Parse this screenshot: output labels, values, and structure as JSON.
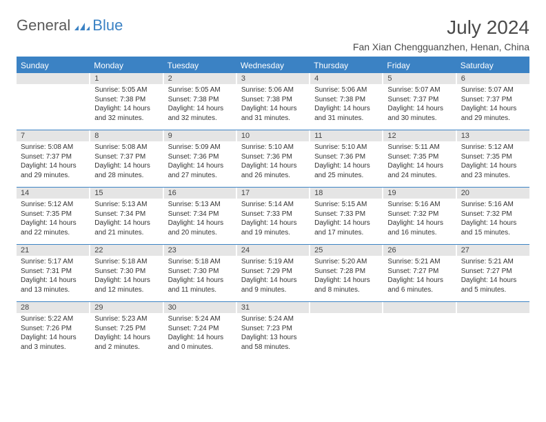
{
  "logo": {
    "word1": "General",
    "word2": "Blue",
    "color_gray": "#5a5a5a",
    "color_blue": "#3b82c4"
  },
  "title": "July 2024",
  "location": "Fan Xian Chengguanzhen, Henan, China",
  "day_names": [
    "Sunday",
    "Monday",
    "Tuesday",
    "Wednesday",
    "Thursday",
    "Friday",
    "Saturday"
  ],
  "colors": {
    "header_bg": "#3b82c4",
    "header_text": "#ffffff",
    "num_bg": "#e5e5e5",
    "rule": "#3b82c4",
    "text": "#333333"
  },
  "weeks": [
    {
      "nums": [
        "",
        "1",
        "2",
        "3",
        "4",
        "5",
        "6"
      ],
      "cells": [
        null,
        {
          "sr": "Sunrise: 5:05 AM",
          "ss": "Sunset: 7:38 PM",
          "d1": "Daylight: 14 hours",
          "d2": "and 32 minutes."
        },
        {
          "sr": "Sunrise: 5:05 AM",
          "ss": "Sunset: 7:38 PM",
          "d1": "Daylight: 14 hours",
          "d2": "and 32 minutes."
        },
        {
          "sr": "Sunrise: 5:06 AM",
          "ss": "Sunset: 7:38 PM",
          "d1": "Daylight: 14 hours",
          "d2": "and 31 minutes."
        },
        {
          "sr": "Sunrise: 5:06 AM",
          "ss": "Sunset: 7:38 PM",
          "d1": "Daylight: 14 hours",
          "d2": "and 31 minutes."
        },
        {
          "sr": "Sunrise: 5:07 AM",
          "ss": "Sunset: 7:37 PM",
          "d1": "Daylight: 14 hours",
          "d2": "and 30 minutes."
        },
        {
          "sr": "Sunrise: 5:07 AM",
          "ss": "Sunset: 7:37 PM",
          "d1": "Daylight: 14 hours",
          "d2": "and 29 minutes."
        }
      ]
    },
    {
      "nums": [
        "7",
        "8",
        "9",
        "10",
        "11",
        "12",
        "13"
      ],
      "cells": [
        {
          "sr": "Sunrise: 5:08 AM",
          "ss": "Sunset: 7:37 PM",
          "d1": "Daylight: 14 hours",
          "d2": "and 29 minutes."
        },
        {
          "sr": "Sunrise: 5:08 AM",
          "ss": "Sunset: 7:37 PM",
          "d1": "Daylight: 14 hours",
          "d2": "and 28 minutes."
        },
        {
          "sr": "Sunrise: 5:09 AM",
          "ss": "Sunset: 7:36 PM",
          "d1": "Daylight: 14 hours",
          "d2": "and 27 minutes."
        },
        {
          "sr": "Sunrise: 5:10 AM",
          "ss": "Sunset: 7:36 PM",
          "d1": "Daylight: 14 hours",
          "d2": "and 26 minutes."
        },
        {
          "sr": "Sunrise: 5:10 AM",
          "ss": "Sunset: 7:36 PM",
          "d1": "Daylight: 14 hours",
          "d2": "and 25 minutes."
        },
        {
          "sr": "Sunrise: 5:11 AM",
          "ss": "Sunset: 7:35 PM",
          "d1": "Daylight: 14 hours",
          "d2": "and 24 minutes."
        },
        {
          "sr": "Sunrise: 5:12 AM",
          "ss": "Sunset: 7:35 PM",
          "d1": "Daylight: 14 hours",
          "d2": "and 23 minutes."
        }
      ]
    },
    {
      "nums": [
        "14",
        "15",
        "16",
        "17",
        "18",
        "19",
        "20"
      ],
      "cells": [
        {
          "sr": "Sunrise: 5:12 AM",
          "ss": "Sunset: 7:35 PM",
          "d1": "Daylight: 14 hours",
          "d2": "and 22 minutes."
        },
        {
          "sr": "Sunrise: 5:13 AM",
          "ss": "Sunset: 7:34 PM",
          "d1": "Daylight: 14 hours",
          "d2": "and 21 minutes."
        },
        {
          "sr": "Sunrise: 5:13 AM",
          "ss": "Sunset: 7:34 PM",
          "d1": "Daylight: 14 hours",
          "d2": "and 20 minutes."
        },
        {
          "sr": "Sunrise: 5:14 AM",
          "ss": "Sunset: 7:33 PM",
          "d1": "Daylight: 14 hours",
          "d2": "and 19 minutes."
        },
        {
          "sr": "Sunrise: 5:15 AM",
          "ss": "Sunset: 7:33 PM",
          "d1": "Daylight: 14 hours",
          "d2": "and 17 minutes."
        },
        {
          "sr": "Sunrise: 5:16 AM",
          "ss": "Sunset: 7:32 PM",
          "d1": "Daylight: 14 hours",
          "d2": "and 16 minutes."
        },
        {
          "sr": "Sunrise: 5:16 AM",
          "ss": "Sunset: 7:32 PM",
          "d1": "Daylight: 14 hours",
          "d2": "and 15 minutes."
        }
      ]
    },
    {
      "nums": [
        "21",
        "22",
        "23",
        "24",
        "25",
        "26",
        "27"
      ],
      "cells": [
        {
          "sr": "Sunrise: 5:17 AM",
          "ss": "Sunset: 7:31 PM",
          "d1": "Daylight: 14 hours",
          "d2": "and 13 minutes."
        },
        {
          "sr": "Sunrise: 5:18 AM",
          "ss": "Sunset: 7:30 PM",
          "d1": "Daylight: 14 hours",
          "d2": "and 12 minutes."
        },
        {
          "sr": "Sunrise: 5:18 AM",
          "ss": "Sunset: 7:30 PM",
          "d1": "Daylight: 14 hours",
          "d2": "and 11 minutes."
        },
        {
          "sr": "Sunrise: 5:19 AM",
          "ss": "Sunset: 7:29 PM",
          "d1": "Daylight: 14 hours",
          "d2": "and 9 minutes."
        },
        {
          "sr": "Sunrise: 5:20 AM",
          "ss": "Sunset: 7:28 PM",
          "d1": "Daylight: 14 hours",
          "d2": "and 8 minutes."
        },
        {
          "sr": "Sunrise: 5:21 AM",
          "ss": "Sunset: 7:27 PM",
          "d1": "Daylight: 14 hours",
          "d2": "and 6 minutes."
        },
        {
          "sr": "Sunrise: 5:21 AM",
          "ss": "Sunset: 7:27 PM",
          "d1": "Daylight: 14 hours",
          "d2": "and 5 minutes."
        }
      ]
    },
    {
      "nums": [
        "28",
        "29",
        "30",
        "31",
        "",
        "",
        ""
      ],
      "cells": [
        {
          "sr": "Sunrise: 5:22 AM",
          "ss": "Sunset: 7:26 PM",
          "d1": "Daylight: 14 hours",
          "d2": "and 3 minutes."
        },
        {
          "sr": "Sunrise: 5:23 AM",
          "ss": "Sunset: 7:25 PM",
          "d1": "Daylight: 14 hours",
          "d2": "and 2 minutes."
        },
        {
          "sr": "Sunrise: 5:24 AM",
          "ss": "Sunset: 7:24 PM",
          "d1": "Daylight: 14 hours",
          "d2": "and 0 minutes."
        },
        {
          "sr": "Sunrise: 5:24 AM",
          "ss": "Sunset: 7:23 PM",
          "d1": "Daylight: 13 hours",
          "d2": "and 58 minutes."
        },
        null,
        null,
        null
      ]
    }
  ]
}
